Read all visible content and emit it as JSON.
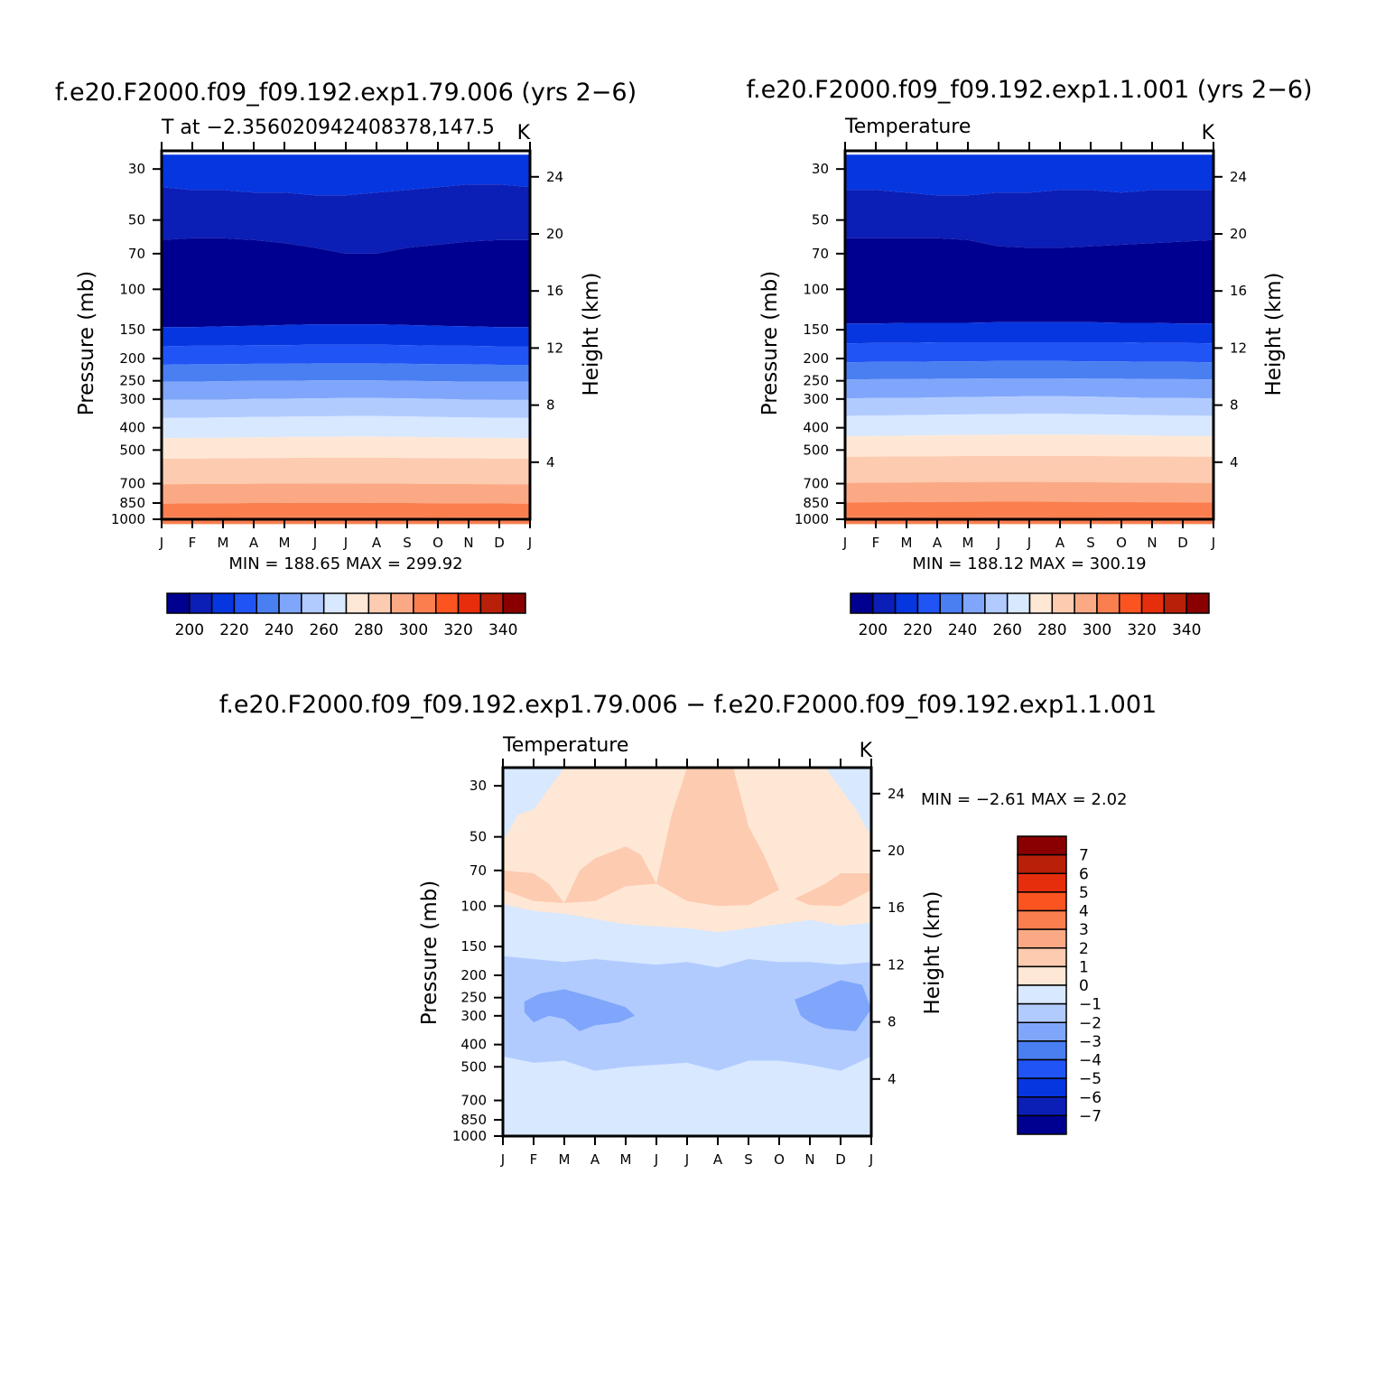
{
  "colors": {
    "palette": [
      "#000090",
      "#0b1eb6",
      "#0636e0",
      "#2154f4",
      "#4a7ff2",
      "#80a6fb",
      "#b2cbff",
      "#d7e8ff",
      "#ffe7d6",
      "#fdcbb0",
      "#fba985",
      "#fb7e4f",
      "#fb5420",
      "#e62e0d",
      "#b82009",
      "#8a0000"
    ],
    "axis": "#000000",
    "background": "#ffffff"
  },
  "chart_data": [
    {
      "type": "contour",
      "title": "f.e20.F2000.f09_f09.192.exp1.79.006 (yrs 2−6)",
      "subtitle_left": "T at −2.356020942408378,147.5",
      "subtitle_right": "K",
      "ylabel": "Pressure (mb)",
      "ylabel_right": "Height (km)",
      "x_ticks": [
        "J",
        "F",
        "M",
        "A",
        "M",
        "J",
        "J",
        "A",
        "S",
        "O",
        "N",
        "D",
        "J"
      ],
      "y_ticks": [
        "30",
        "50",
        "70",
        "100",
        "150",
        "200",
        "250",
        "300",
        "400",
        "500",
        "700",
        "850",
        "1000"
      ],
      "y_ticks_right": [
        "24",
        "20",
        "16",
        "12",
        "8",
        "4"
      ],
      "minmax": "MIN = 188.65 MAX = 299.92",
      "colorbar_labels": [
        "200",
        "220",
        "240",
        "260",
        "280",
        "300",
        "320",
        "340"
      ],
      "contour_levels": [
        195,
        200,
        205,
        210,
        220,
        230,
        240,
        250,
        260,
        270,
        280,
        285,
        290
      ],
      "contour_pressures": [
        [
          36,
          37,
          37,
          38,
          38,
          39,
          39,
          38,
          37,
          36,
          35,
          35,
          36
        ],
        [
          61,
          60,
          60,
          61,
          63,
          66,
          70,
          70,
          66,
          64,
          62,
          61,
          61
        ],
        [
          146,
          146,
          145,
          144,
          143,
          142,
          142,
          142,
          143,
          144,
          145,
          146,
          146
        ],
        [
          177,
          176,
          176,
          175,
          175,
          174,
          174,
          174,
          175,
          176,
          176,
          177,
          177
        ],
        [
          213,
          212,
          212,
          211,
          211,
          210,
          210,
          210,
          211,
          212,
          212,
          213,
          213
        ],
        [
          252,
          252,
          251,
          250,
          250,
          249,
          249,
          249,
          250,
          251,
          252,
          252,
          252
        ],
        [
          303,
          302,
          302,
          300,
          299,
          298,
          297,
          297,
          298,
          300,
          302,
          303,
          303
        ],
        [
          363,
          362,
          361,
          359,
          358,
          357,
          356,
          356,
          357,
          359,
          361,
          362,
          363
        ],
        [
          444,
          443,
          442,
          440,
          439,
          438,
          437,
          437,
          438,
          440,
          442,
          443,
          444
        ],
        [
          545,
          544,
          543,
          542,
          541,
          540,
          540,
          540,
          541,
          542,
          543,
          544,
          545
        ],
        [
          705,
          703,
          702,
          700,
          699,
          698,
          698,
          699,
          700,
          702,
          703,
          704,
          705
        ],
        [
          855,
          853,
          852,
          850,
          849,
          848,
          848,
          849,
          850,
          852,
          853,
          854,
          855
        ],
        [
          975,
          974,
          973,
          972,
          972,
          971,
          971,
          972,
          972,
          973,
          974,
          974,
          975
        ]
      ]
    },
    {
      "type": "contour",
      "title": "f.e20.F2000.f09_f09.192.exp1.1.001 (yrs 2−6)",
      "subtitle_left": "Temperature",
      "subtitle_right": "K",
      "ylabel": "Pressure (mb)",
      "ylabel_right": "Height (km)",
      "x_ticks": [
        "J",
        "F",
        "M",
        "A",
        "M",
        "J",
        "J",
        "A",
        "S",
        "O",
        "N",
        "D",
        "J"
      ],
      "y_ticks": [
        "30",
        "50",
        "70",
        "100",
        "150",
        "200",
        "250",
        "300",
        "400",
        "500",
        "700",
        "850",
        "1000"
      ],
      "y_ticks_right": [
        "24",
        "20",
        "16",
        "12",
        "8",
        "4"
      ],
      "minmax": "MIN = 188.12 MAX = 300.19",
      "colorbar_labels": [
        "200",
        "220",
        "240",
        "260",
        "280",
        "300",
        "320",
        "340"
      ],
      "contour_levels": [
        195,
        200,
        205,
        210,
        220,
        230,
        240,
        250,
        260,
        270,
        280,
        285,
        290
      ],
      "contour_pressures": [
        [
          37,
          37,
          38,
          39,
          39,
          38,
          38,
          37,
          37,
          38,
          37,
          37,
          37
        ],
        [
          60,
          60,
          60,
          60,
          61,
          65,
          66,
          66,
          65,
          64,
          63,
          62,
          61
        ],
        [
          141,
          141,
          140,
          140,
          140,
          139,
          139,
          139,
          139,
          140,
          140,
          141,
          141
        ],
        [
          172,
          171,
          171,
          170,
          170,
          170,
          170,
          170,
          170,
          170,
          171,
          171,
          172
        ],
        [
          208,
          207,
          207,
          206,
          206,
          205,
          205,
          205,
          206,
          206,
          207,
          207,
          208
        ],
        [
          247,
          246,
          246,
          245,
          245,
          244,
          244,
          244,
          245,
          245,
          246,
          246,
          247
        ],
        [
          298,
          297,
          297,
          295,
          294,
          293,
          292,
          292,
          293,
          295,
          297,
          297,
          298
        ],
        [
          355,
          354,
          353,
          351,
          350,
          349,
          348,
          348,
          349,
          351,
          353,
          354,
          355
        ],
        [
          435,
          434,
          433,
          431,
          430,
          429,
          428,
          428,
          429,
          431,
          433,
          434,
          435
        ],
        [
          535,
          534,
          533,
          532,
          531,
          530,
          530,
          530,
          531,
          532,
          533,
          534,
          535
        ],
        [
          695,
          693,
          692,
          690,
          689,
          688,
          688,
          689,
          690,
          692,
          693,
          694,
          695
        ],
        [
          845,
          843,
          842,
          840,
          839,
          838,
          838,
          839,
          840,
          842,
          843,
          844,
          845
        ],
        [
          972,
          971,
          970,
          969,
          969,
          968,
          968,
          969,
          969,
          970,
          971,
          971,
          972
        ]
      ]
    },
    {
      "type": "contour",
      "title": "f.e20.F2000.f09_f09.192.exp1.79.006 − f.e20.F2000.f09_f09.192.exp1.1.001",
      "subtitle_left": "Temperature",
      "subtitle_right": "K",
      "ylabel": "Pressure (mb)",
      "ylabel_right": "Height (km)",
      "x_ticks": [
        "J",
        "F",
        "M",
        "A",
        "M",
        "J",
        "J",
        "A",
        "S",
        "O",
        "N",
        "D",
        "J"
      ],
      "y_ticks": [
        "30",
        "50",
        "70",
        "100",
        "150",
        "200",
        "250",
        "300",
        "400",
        "500",
        "700",
        "850",
        "1000"
      ],
      "y_ticks_right": [
        "24",
        "20",
        "16",
        "12",
        "8",
        "4"
      ],
      "minmax": "MIN =   −2.61  MAX =     2.02",
      "colorbar_labels": [
        "7",
        "6",
        "5",
        "4",
        "3",
        "2",
        "1",
        "0",
        "−1",
        "−2",
        "−3",
        "−4",
        "−5",
        "−6",
        "−7"
      ],
      "range": [
        -2.61,
        2.02
      ],
      "regions": {
        "zero_to_plus_one": [
          [
            0,
            52
          ],
          [
            0.5,
            40
          ],
          [
            1,
            38
          ],
          [
            2,
            25
          ],
          [
            10.5,
            25
          ],
          [
            11.5,
            38
          ],
          [
            12,
            50
          ],
          [
            12,
            118
          ],
          [
            11,
            122
          ],
          [
            10,
            115
          ],
          [
            9,
            120
          ],
          [
            8,
            125
          ],
          [
            7,
            130
          ],
          [
            6,
            125
          ],
          [
            5,
            125
          ],
          [
            4,
            120
          ],
          [
            3,
            115
          ],
          [
            2,
            108
          ],
          [
            1,
            105
          ],
          [
            0,
            98
          ]
        ],
        "plus_one_to_two_a": [
          [
            0,
            70
          ],
          [
            1,
            72
          ],
          [
            1.5,
            80
          ],
          [
            2,
            97
          ],
          [
            1,
            95
          ],
          [
            0,
            85
          ]
        ],
        "plus_one_to_two_b": [
          [
            2,
            97
          ],
          [
            2.5,
            70
          ],
          [
            3,
            62
          ],
          [
            4,
            55
          ],
          [
            4.5,
            60
          ],
          [
            5,
            80
          ],
          [
            5.5,
            40
          ],
          [
            6,
            25
          ],
          [
            7.5,
            25
          ],
          [
            8,
            45
          ],
          [
            8.5,
            60
          ],
          [
            9,
            85
          ],
          [
            8,
            99
          ],
          [
            7,
            100
          ],
          [
            6,
            95
          ],
          [
            5,
            80
          ],
          [
            4,
            82
          ],
          [
            3,
            95
          ]
        ],
        "plus_one_to_two_c": [
          [
            9.5,
            93
          ],
          [
            10.5,
            80
          ],
          [
            11,
            72
          ],
          [
            12,
            72
          ],
          [
            12,
            85
          ],
          [
            11,
            100
          ],
          [
            10,
            99
          ]
        ],
        "minus_one_to_zero_upper": [
          [
            0,
            105
          ],
          [
            2,
            108
          ],
          [
            4,
            120
          ],
          [
            6,
            125
          ],
          [
            7,
            130
          ],
          [
            8,
            125
          ],
          [
            9,
            120
          ],
          [
            10,
            115
          ],
          [
            11,
            122
          ],
          [
            12,
            118
          ],
          [
            12,
            175
          ],
          [
            11,
            180
          ],
          [
            10,
            175
          ],
          [
            9,
            175
          ],
          [
            8,
            170
          ],
          [
            7,
            185
          ],
          [
            6,
            175
          ],
          [
            5,
            180
          ],
          [
            4,
            175
          ],
          [
            3,
            170
          ],
          [
            2,
            175
          ],
          [
            1,
            170
          ],
          [
            0,
            165
          ]
        ],
        "minus_one_to_zero_lower": [
          [
            0,
            450
          ],
          [
            1,
            480
          ],
          [
            2,
            470
          ],
          [
            3,
            520
          ],
          [
            4,
            500
          ],
          [
            5,
            490
          ],
          [
            6,
            480
          ],
          [
            7,
            520
          ],
          [
            8,
            470
          ],
          [
            9,
            470
          ],
          [
            10,
            490
          ],
          [
            11,
            520
          ],
          [
            12,
            450
          ],
          [
            12,
            1000
          ],
          [
            0,
            1000
          ]
        ],
        "minus_two_to_minus_one": [
          [
            0,
            165
          ],
          [
            1,
            170
          ],
          [
            2,
            175
          ],
          [
            3,
            170
          ],
          [
            4,
            175
          ],
          [
            5,
            180
          ],
          [
            6,
            175
          ],
          [
            7,
            185
          ],
          [
            8,
            170
          ],
          [
            9,
            175
          ],
          [
            10,
            175
          ],
          [
            11,
            180
          ],
          [
            12,
            175
          ],
          [
            12,
            450
          ],
          [
            11,
            520
          ],
          [
            10,
            490
          ],
          [
            9,
            470
          ],
          [
            8,
            470
          ],
          [
            7,
            520
          ],
          [
            6,
            480
          ],
          [
            5,
            490
          ],
          [
            4,
            500
          ],
          [
            3,
            520
          ],
          [
            2,
            470
          ],
          [
            1,
            480
          ],
          [
            0,
            450
          ]
        ],
        "minus_three_to_minus_two_a": [
          [
            0.7,
            260
          ],
          [
            1.2,
            240
          ],
          [
            2,
            230
          ],
          [
            3,
            250
          ],
          [
            4,
            275
          ],
          [
            4.3,
            300
          ],
          [
            3.8,
            320
          ],
          [
            3,
            330
          ],
          [
            2.5,
            350
          ],
          [
            2,
            310
          ],
          [
            1.5,
            300
          ],
          [
            1,
            320
          ],
          [
            0.7,
            290
          ]
        ],
        "minus_three_to_minus_two_b": [
          [
            9.5,
            255
          ],
          [
            10,
            240
          ],
          [
            11,
            210
          ],
          [
            11.7,
            220
          ],
          [
            12,
            280
          ],
          [
            11.5,
            350
          ],
          [
            10.5,
            340
          ],
          [
            10,
            320
          ],
          [
            9.7,
            300
          ]
        ]
      }
    }
  ]
}
